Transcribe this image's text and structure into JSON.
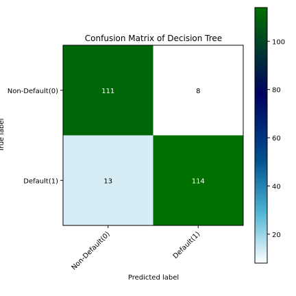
{
  "chart_data": {
    "type": "heatmap",
    "title": "Confusion Matrix of Decision Tree",
    "xlabel": "Predicted label",
    "ylabel": "True label",
    "x_categories": [
      "Non-Default(0)",
      "Default(1)"
    ],
    "y_categories": [
      "Non-Default(0)",
      "Default(1)"
    ],
    "values": [
      [
        111,
        8
      ],
      [
        13,
        114
      ]
    ],
    "colormap": "ocean_r",
    "colorbar": {
      "range": [
        8,
        114
      ],
      "ticks": [
        20,
        40,
        60,
        80,
        100
      ],
      "tick_labels": [
        "20",
        "40",
        "60",
        "80",
        "100"
      ]
    },
    "text_color_dark": "#000000",
    "text_color_light": "#ffffff"
  }
}
